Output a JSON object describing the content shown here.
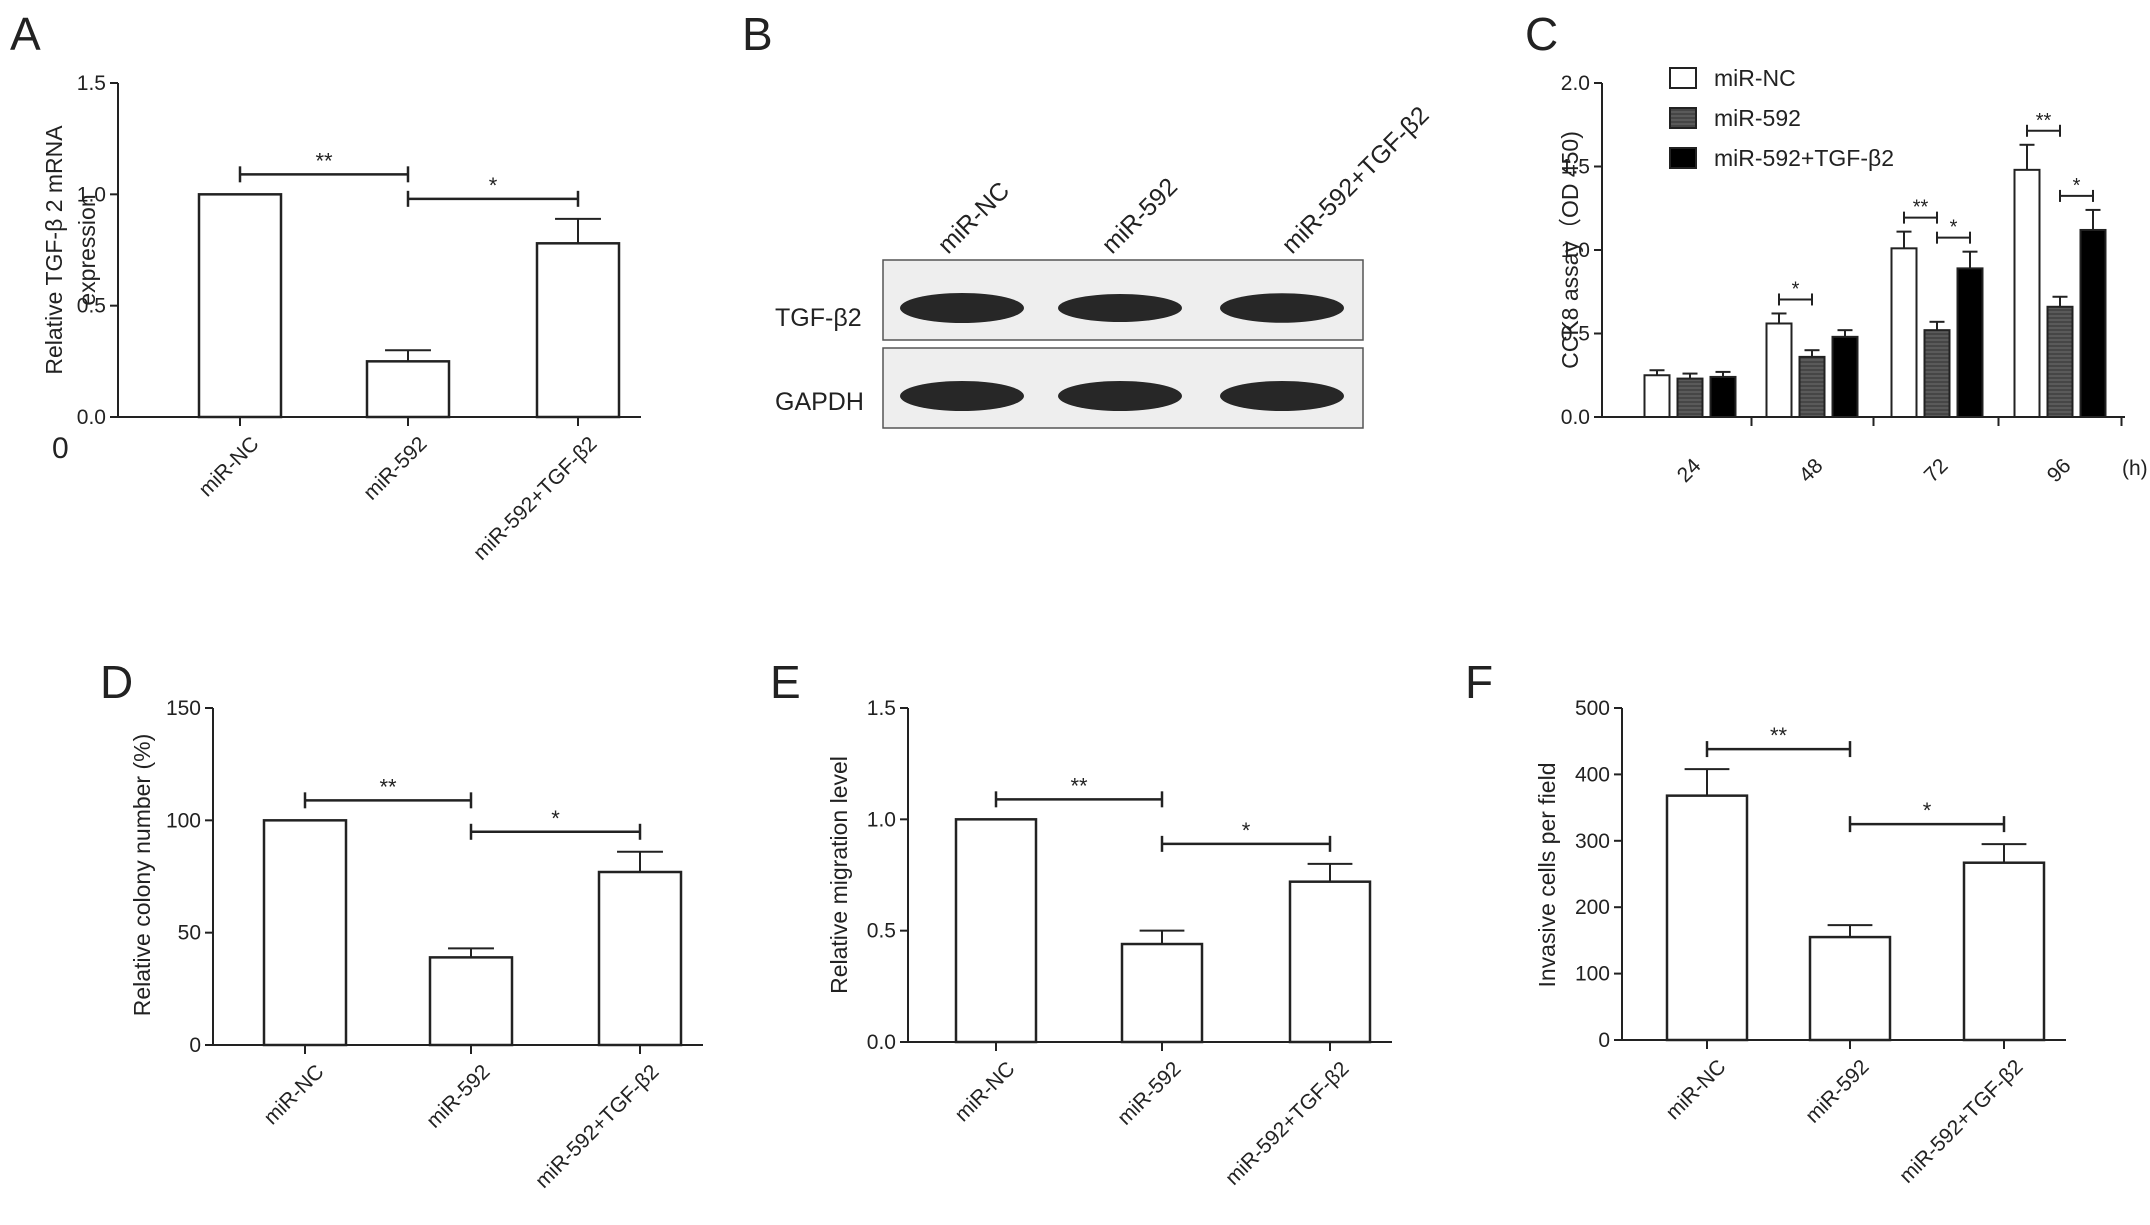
{
  "panel_labels": [
    "A",
    "B",
    "C",
    "D",
    "E",
    "F"
  ],
  "stray_text": "0",
  "groups": [
    "miR-NC",
    "miR-592",
    "miR-592+TGF-β2"
  ],
  "blot": {
    "rows": [
      "TGF-β2",
      "GAPDH"
    ],
    "lanes": [
      "miR-NC",
      "miR-592",
      "miR-592+TGF-β2"
    ],
    "band_intensity": [
      [
        1.0,
        0.8,
        0.95
      ],
      [
        1.0,
        1.0,
        1.0
      ]
    ]
  },
  "chart_data": [
    {
      "id": "A",
      "type": "bar",
      "ylabel_lines": [
        "Relative TGF-β 2 mRNA",
        "expression"
      ],
      "ylim": [
        0,
        1.5
      ],
      "yticks": [
        0,
        0.5,
        1.0,
        1.5
      ],
      "ytick_labels": [
        "0.0",
        "0.5",
        "1.0",
        "1.5"
      ],
      "categories": [
        "miR-NC",
        "miR-592",
        "miR-592+TGF-β2"
      ],
      "values": [
        1.0,
        0.25,
        0.78
      ],
      "errors": [
        0,
        0.05,
        0.11
      ],
      "significance": [
        {
          "from": 0,
          "to": 1,
          "label": "**"
        },
        {
          "from": 1,
          "to": 2,
          "label": "*"
        }
      ]
    },
    {
      "id": "C",
      "type": "bar",
      "ylabel_lines": [
        "CCK8 assay（OD 450)"
      ],
      "ylim": [
        0,
        2.0
      ],
      "yticks": [
        0,
        0.5,
        1.0,
        1.5,
        2.0
      ],
      "ytick_labels": [
        "0.0",
        "0.5",
        "1.0",
        "1.5",
        "2.0"
      ],
      "categories": [
        "24",
        "48",
        "72",
        "96"
      ],
      "x_unit": "(h)",
      "legend_position": "top-left",
      "series": [
        {
          "name": "miR-NC",
          "color": "#ffffff",
          "values": [
            0.25,
            0.56,
            1.01,
            1.48
          ],
          "errors": [
            0.03,
            0.06,
            0.1,
            0.15
          ]
        },
        {
          "name": "miR-592",
          "color": "#5a5a5a",
          "values": [
            0.23,
            0.36,
            0.52,
            0.66
          ],
          "errors": [
            0.03,
            0.04,
            0.05,
            0.06
          ]
        },
        {
          "name": "miR-592+TGF-β2",
          "color": "#000000",
          "values": [
            0.24,
            0.48,
            0.89,
            1.12
          ],
          "errors": [
            0.03,
            0.04,
            0.1,
            0.12
          ]
        }
      ],
      "significance": [
        {
          "group": 1,
          "from": 0,
          "to": 1,
          "label": "*"
        },
        {
          "group": 2,
          "from": 0,
          "to": 1,
          "label": "**"
        },
        {
          "group": 2,
          "from": 1,
          "to": 2,
          "label": "*"
        },
        {
          "group": 3,
          "from": 0,
          "to": 1,
          "label": "**"
        },
        {
          "group": 3,
          "from": 1,
          "to": 2,
          "label": "*"
        }
      ]
    },
    {
      "id": "D",
      "type": "bar",
      "ylabel_lines": [
        "Relative colony number (%)"
      ],
      "ylim": [
        0,
        150
      ],
      "yticks": [
        0,
        50,
        100,
        150
      ],
      "ytick_labels": [
        "0",
        "50",
        "100",
        "150"
      ],
      "categories": [
        "miR-NC",
        "miR-592",
        "miR-592+TGF-β2"
      ],
      "values": [
        100,
        39,
        77
      ],
      "errors": [
        0,
        4,
        9
      ],
      "significance": [
        {
          "from": 0,
          "to": 1,
          "label": "**"
        },
        {
          "from": 1,
          "to": 2,
          "label": "*"
        }
      ]
    },
    {
      "id": "E",
      "type": "bar",
      "ylabel_lines": [
        "Relative migration level"
      ],
      "ylim": [
        0,
        1.5
      ],
      "yticks": [
        0,
        0.5,
        1.0,
        1.5
      ],
      "ytick_labels": [
        "0.0",
        "0.5",
        "1.0",
        "1.5"
      ],
      "categories": [
        "miR-NC",
        "miR-592",
        "miR-592+TGF-β2"
      ],
      "values": [
        1.0,
        0.44,
        0.72
      ],
      "errors": [
        0,
        0.06,
        0.08
      ],
      "significance": [
        {
          "from": 0,
          "to": 1,
          "label": "**"
        },
        {
          "from": 1,
          "to": 2,
          "label": "*"
        }
      ]
    },
    {
      "id": "F",
      "type": "bar",
      "ylabel_lines": [
        "Invasive  cells per field"
      ],
      "ylim": [
        0,
        500
      ],
      "yticks": [
        0,
        100,
        200,
        300,
        400,
        500
      ],
      "ytick_labels": [
        "0",
        "100",
        "200",
        "300",
        "400",
        "500"
      ],
      "categories": [
        "miR-NC",
        "miR-592",
        "miR-592+TGF-β2"
      ],
      "values": [
        368,
        155,
        267
      ],
      "errors": [
        40,
        18,
        28
      ],
      "significance": [
        {
          "from": 0,
          "to": 1,
          "label": "**"
        },
        {
          "from": 1,
          "to": 2,
          "label": "*"
        }
      ]
    }
  ]
}
